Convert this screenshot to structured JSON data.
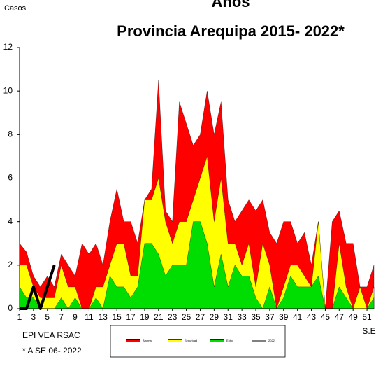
{
  "chart_data": {
    "type": "area",
    "title_lines": [
      "Años",
      "Provincia Arequipa  2015- 2022*"
    ],
    "y_label": "Casos",
    "x_label": "S.E",
    "annotations": [
      "EPI VEA RSAC",
      "* A  SE 06- 2022"
    ],
    "x": [
      1,
      2,
      3,
      4,
      5,
      6,
      7,
      8,
      9,
      10,
      11,
      12,
      13,
      14,
      15,
      16,
      17,
      18,
      19,
      20,
      21,
      22,
      23,
      24,
      25,
      26,
      27,
      28,
      29,
      30,
      31,
      32,
      33,
      34,
      35,
      36,
      37,
      38,
      39,
      40,
      41,
      42,
      43,
      44,
      45,
      46,
      47,
      48,
      49,
      50,
      51,
      52
    ],
    "series": [
      {
        "name": "Alarma",
        "color": "#ff0000",
        "values": [
          3,
          2.6,
          1.5,
          1,
          1.5,
          1,
          2.5,
          2,
          1.5,
          3,
          2.5,
          3,
          2,
          4,
          5.5,
          4,
          4,
          3,
          5,
          5.5,
          10.5,
          4.5,
          4,
          9.5,
          8.5,
          7.5,
          8,
          10,
          8,
          9.5,
          5,
          4,
          4.5,
          5,
          4.5,
          5,
          3.5,
          3,
          4,
          4,
          3,
          3.5,
          2,
          4,
          0,
          4,
          4.5,
          3,
          3,
          1,
          1,
          2
        ]
      },
      {
        "name": "Seguridad",
        "color": "#ffff00",
        "values": [
          2,
          2,
          1,
          0.5,
          0.5,
          0.5,
          2,
          1,
          1,
          0,
          0,
          1,
          1,
          2,
          3,
          3,
          1.5,
          1.5,
          5,
          5,
          6,
          4,
          3,
          4,
          4,
          5,
          6,
          7,
          4,
          6,
          3,
          3,
          2,
          3,
          1,
          3,
          2,
          0,
          1,
          2,
          2,
          1.5,
          1,
          4,
          0,
          0,
          3,
          1,
          0,
          1,
          0,
          1
        ]
      },
      {
        "name": "Exito",
        "color": "#00dd00",
        "values": [
          1,
          0.5,
          0.5,
          0,
          0,
          0,
          0.5,
          0,
          0.5,
          0,
          0,
          0.5,
          0,
          1.5,
          1,
          1,
          0.5,
          1,
          3,
          3,
          2.5,
          1.5,
          2,
          2,
          2,
          4,
          4,
          3,
          1,
          2.5,
          1,
          2,
          1.5,
          1.5,
          0.5,
          0,
          1,
          0,
          0.5,
          1.5,
          1,
          1,
          1,
          1.5,
          0,
          0,
          1,
          0.5,
          0,
          0,
          0,
          0.5
        ]
      },
      {
        "name": "2022",
        "color": "#000000",
        "line": true,
        "values": [
          0,
          0,
          1,
          0,
          1,
          2,
          null,
          null,
          null,
          null,
          null,
          null,
          null,
          null,
          null,
          null,
          null,
          null,
          null,
          null,
          null,
          null,
          null,
          null,
          null,
          null,
          null,
          null,
          null,
          null,
          null,
          null,
          null,
          null,
          null,
          null,
          null,
          null,
          null,
          null,
          null,
          null,
          null,
          null,
          null,
          null,
          null,
          null,
          null,
          null,
          null,
          null
        ]
      }
    ],
    "xlim": [
      1,
      52
    ],
    "xticks": [
      1,
      3,
      5,
      7,
      9,
      11,
      13,
      15,
      17,
      19,
      21,
      23,
      25,
      27,
      29,
      31,
      33,
      35,
      37,
      39,
      41,
      43,
      45,
      47,
      49,
      51
    ],
    "ylim": [
      0,
      12
    ],
    "yticks": [
      0,
      2,
      4,
      6,
      8,
      10,
      12
    ],
    "grid": false,
    "legend": "bottom"
  }
}
